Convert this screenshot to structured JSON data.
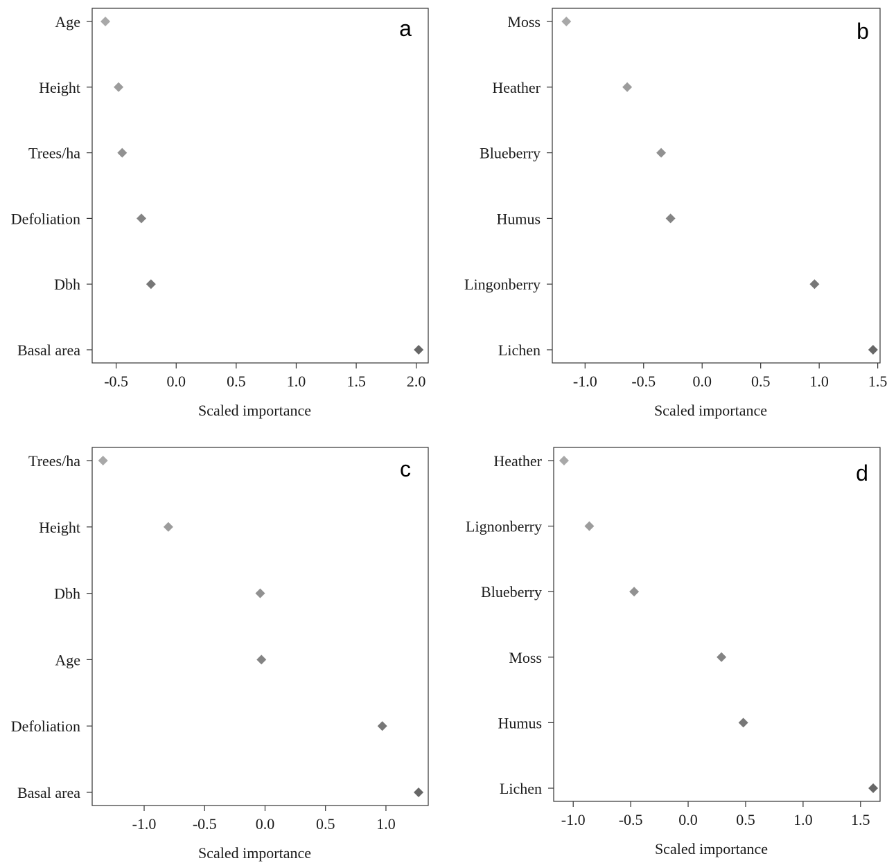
{
  "chart_data": [
    {
      "type": "scatter",
      "panel": "a",
      "xlabel": "Scaled importance",
      "xlim": [
        -0.7,
        2.1
      ],
      "xticks": [
        "-0.5",
        "0.0",
        "0.5",
        "1.0",
        "1.5",
        "2.0"
      ],
      "xtick_values": [
        -0.5,
        0.0,
        0.5,
        1.0,
        1.5,
        2.0
      ],
      "categories": [
        "Age",
        "Height",
        "Trees/ha",
        "Defoliation",
        "Dbh",
        "Basal area"
      ],
      "values": [
        -0.59,
        -0.48,
        -0.45,
        -0.29,
        -0.21,
        2.02
      ],
      "colors": [
        "#a8a8a8",
        "#9c9c9c",
        "#919191",
        "#848484",
        "#777777",
        "#676767"
      ]
    },
    {
      "type": "scatter",
      "panel": "b",
      "xlabel": "Scaled importance",
      "xlim": [
        -1.28,
        1.52
      ],
      "xticks": [
        "-1.0",
        "-0.5",
        "0.0",
        "0.5",
        "1.0",
        "1.5"
      ],
      "xtick_values": [
        -1.0,
        -0.5,
        0.0,
        0.5,
        1.0,
        1.5
      ],
      "categories": [
        "Moss",
        "Heather",
        "Blueberry",
        "Humus",
        "Lingonberry",
        "Lichen"
      ],
      "values": [
        -1.16,
        -0.64,
        -0.35,
        -0.27,
        0.96,
        1.46
      ],
      "colors": [
        "#a8a8a8",
        "#9c9c9c",
        "#919191",
        "#848484",
        "#777777",
        "#676767"
      ]
    },
    {
      "type": "scatter",
      "panel": "c",
      "xlabel": "Scaled importance",
      "xlim": [
        -1.43,
        1.35
      ],
      "xticks": [
        "-1.0",
        "-0.5",
        "0.0",
        "0.5",
        "1.0"
      ],
      "xtick_values": [
        -1.0,
        -0.5,
        0.0,
        0.5,
        1.0
      ],
      "categories": [
        "Trees/ha",
        "Height",
        "Dbh",
        "Age",
        "Defoliation",
        "Basal area"
      ],
      "values": [
        -1.34,
        -0.8,
        -0.04,
        -0.03,
        0.97,
        1.27
      ],
      "colors": [
        "#a8a8a8",
        "#9c9c9c",
        "#919191",
        "#848484",
        "#777777",
        "#676767"
      ]
    },
    {
      "type": "scatter",
      "panel": "d",
      "xlabel": "Scaled importance",
      "xlim": [
        -1.17,
        1.67
      ],
      "xticks": [
        "-1.0",
        "-0.5",
        "0.0",
        "0.5",
        "1.0",
        "1.5"
      ],
      "xtick_values": [
        -1.0,
        -0.5,
        0.0,
        0.5,
        1.0,
        1.5
      ],
      "categories": [
        "Heather",
        "Lignonberry",
        "Blueberry",
        "Moss",
        "Humus",
        "Lichen"
      ],
      "values": [
        -1.08,
        -0.86,
        -0.47,
        0.29,
        0.48,
        1.61
      ],
      "colors": [
        "#a8a8a8",
        "#9c9c9c",
        "#919191",
        "#848484",
        "#777777",
        "#676767"
      ]
    }
  ]
}
